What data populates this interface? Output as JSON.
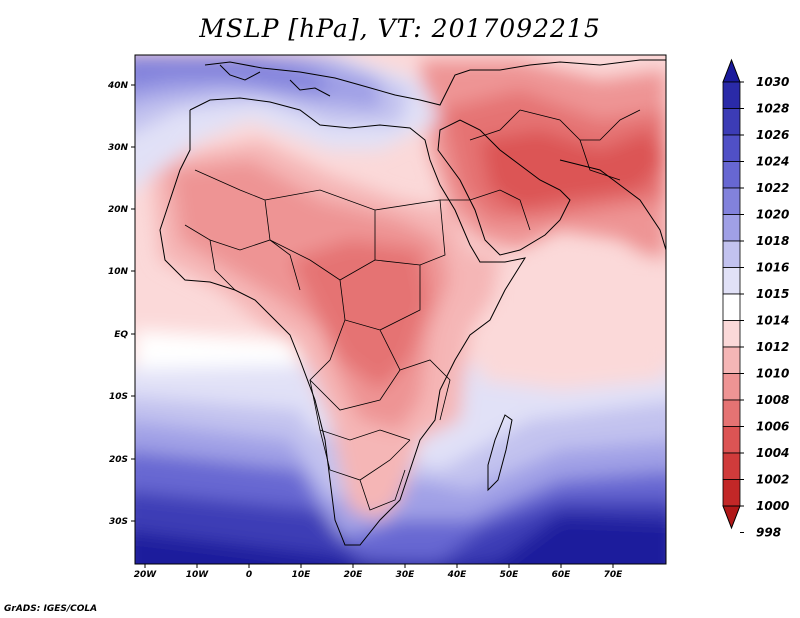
{
  "title": "MSLP [hPa], VT: 2017092215",
  "credit": "GrADS: IGES/COLA",
  "map": {
    "region": "Africa and Middle East",
    "lat_labels": [
      "40N",
      "30N",
      "20N",
      "10N",
      "EQ",
      "10S",
      "20S",
      "30S"
    ],
    "lon_labels": [
      "20W",
      "10W",
      "0",
      "10E",
      "20E",
      "30E",
      "40E",
      "50E",
      "60E",
      "70E"
    ]
  },
  "colorbar": {
    "levels": [
      "1030",
      "1028",
      "1026",
      "1024",
      "1022",
      "1020",
      "1018",
      "1016",
      "1015",
      "1014",
      "1012",
      "1010",
      "1008",
      "1006",
      "1004",
      "1002",
      "1000",
      "998"
    ],
    "colors": [
      "#1a1a9c",
      "#2a2aa8",
      "#3c3cb6",
      "#5050c6",
      "#6767d2",
      "#8282dc",
      "#a0a0e6",
      "#c2c2ef",
      "#e1e1f7",
      "#ffffff",
      "#fbd9d9",
      "#f5b6b6",
      "#ee9494",
      "#e57373",
      "#dc5454",
      "#d03b3b",
      "#c22727",
      "#b01818"
    ]
  }
}
